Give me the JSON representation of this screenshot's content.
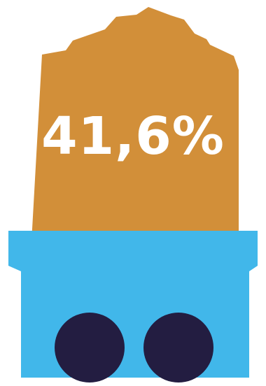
{
  "infographic": {
    "stat_value": "41,6%",
    "colors": {
      "ore": "#D28F39",
      "cart": "#41B7EA",
      "wheels": "#231D41",
      "text": "#FFFFFF"
    },
    "icons": {
      "ore": "ore-pile-icon",
      "cart": "mine-cart-icon",
      "wheels": "wheel-icon"
    }
  }
}
